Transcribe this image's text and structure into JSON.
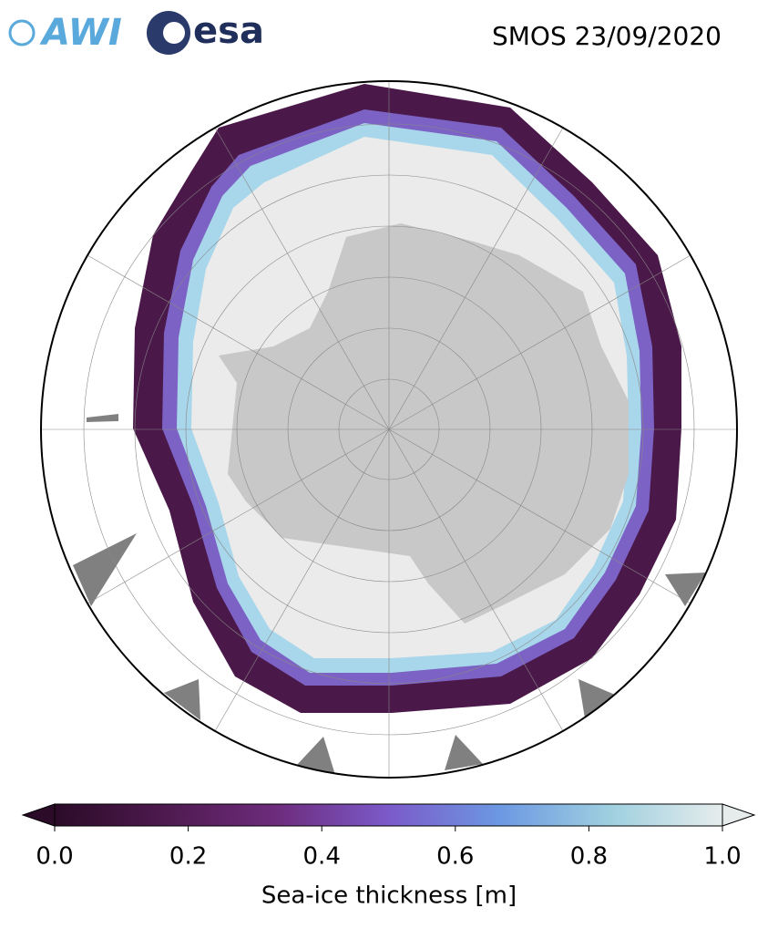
{
  "logos": {
    "awi": "AWI",
    "esa": "esa"
  },
  "title": "SMOS 23/09/2020",
  "colorbar": {
    "label": "Sea-ice thickness [m]",
    "lim": [
      0,
      1
    ],
    "ticks": [
      {
        "value": 0,
        "label": "0.0"
      },
      {
        "value": 0.2,
        "label": "0.2"
      },
      {
        "value": 0.4,
        "label": "0.4"
      },
      {
        "value": 0.6,
        "label": "0.6"
      },
      {
        "value": 0.8,
        "label": "0.8"
      },
      {
        "value": 1,
        "label": "1.0"
      }
    ],
    "colors": [
      "#2b0b28",
      "#4e1a4f",
      "#6e2c7d",
      "#7b5ac9",
      "#6c98e2",
      "#9fd0e0",
      "#e6ecec"
    ]
  }
}
